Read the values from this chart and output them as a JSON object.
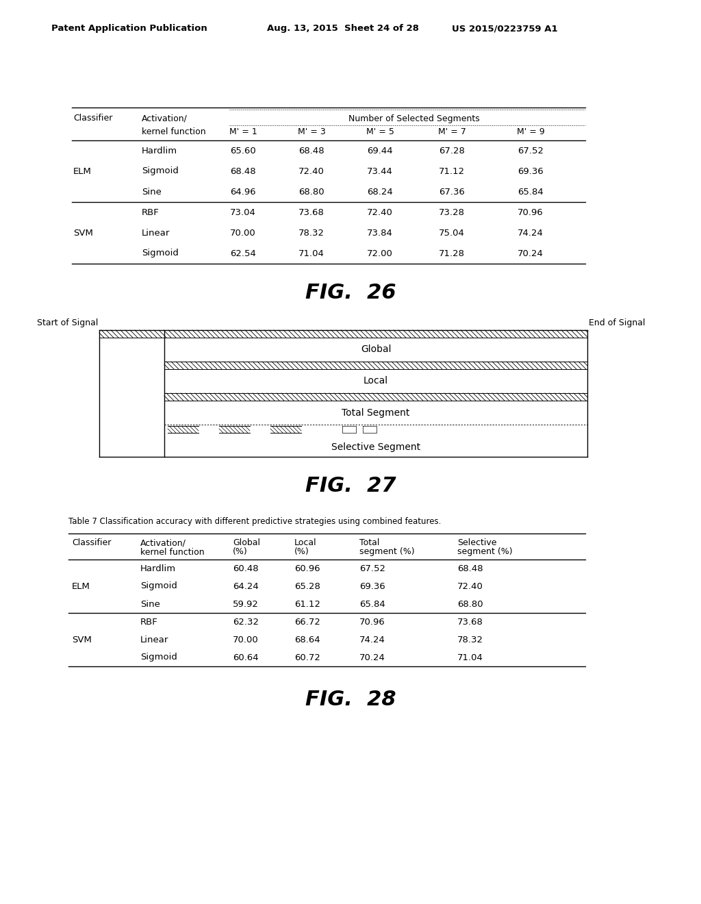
{
  "header_text_left": "Patent Application Publication",
  "header_text_mid": "Aug. 13, 2015  Sheet 24 of 28",
  "header_text_right": "US 2015/0223759 A1",
  "fig26_caption": "FIG.  26",
  "fig27_caption": "FIG.  27",
  "fig28_caption": "FIG.  28",
  "table26": {
    "span_header": "Number of Selected Segments",
    "rows": [
      [
        "",
        "Hardlim",
        "65.60",
        "68.48",
        "69.44",
        "67.28",
        "67.52"
      ],
      [
        "ELM",
        "Sigmoid",
        "68.48",
        "72.40",
        "73.44",
        "71.12",
        "69.36"
      ],
      [
        "",
        "Sine",
        "64.96",
        "68.80",
        "68.24",
        "67.36",
        "65.84"
      ],
      [
        "",
        "RBF",
        "73.04",
        "73.68",
        "72.40",
        "73.28",
        "70.96"
      ],
      [
        "SVM",
        "Linear",
        "70.00",
        "78.32",
        "73.84",
        "75.04",
        "74.24"
      ],
      [
        "",
        "Sigmoid",
        "62.54",
        "71.04",
        "72.00",
        "71.28",
        "70.24"
      ]
    ],
    "group_separators": [
      3
    ]
  },
  "fig27_labels": {
    "start": "Start of Signal",
    "end": "End of Signal",
    "global": "Global",
    "local": "Local",
    "total": "Total Segment",
    "selective": "Selective Segment"
  },
  "table28": {
    "title": "Table 7 Classification accuracy with different predictive strategies using combined features.",
    "rows": [
      [
        "",
        "Hardlim",
        "60.48",
        "60.96",
        "67.52",
        "68.48"
      ],
      [
        "ELM",
        "Sigmoid",
        "64.24",
        "65.28",
        "69.36",
        "72.40"
      ],
      [
        "",
        "Sine",
        "59.92",
        "61.12",
        "65.84",
        "68.80"
      ],
      [
        "",
        "RBF",
        "62.32",
        "66.72",
        "70.96",
        "73.68"
      ],
      [
        "SVM",
        "Linear",
        "70.00",
        "68.64",
        "74.24",
        "78.32"
      ],
      [
        "",
        "Sigmoid",
        "60.64",
        "60.72",
        "70.24",
        "71.04"
      ]
    ],
    "group_separators": [
      3
    ]
  },
  "bg_color": "#ffffff",
  "text_color": "#000000"
}
